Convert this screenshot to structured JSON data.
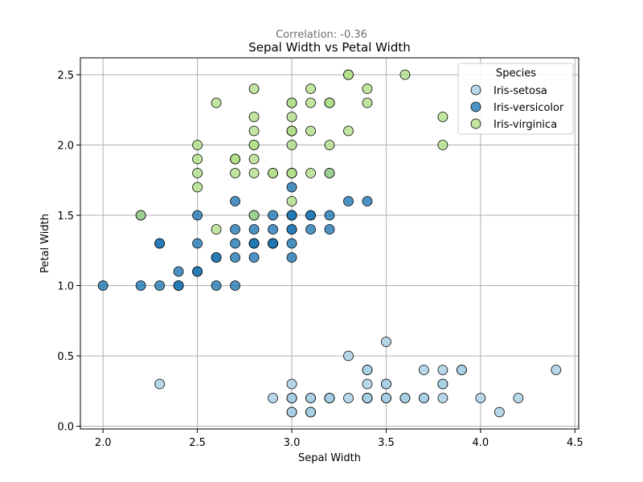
{
  "chart_data": {
    "type": "scatter",
    "subtitle": "Correlation: -0.36",
    "title": "Sepal Width vs Petal Width",
    "xlabel": "Sepal Width",
    "ylabel": "Petal Width",
    "xlim": [
      1.88,
      4.52
    ],
    "ylim": [
      -0.02,
      2.62
    ],
    "xticks": [
      2.0,
      2.5,
      3.0,
      3.5,
      4.0,
      4.5
    ],
    "yticks": [
      0.0,
      0.5,
      1.0,
      1.5,
      2.0,
      2.5
    ],
    "grid": true,
    "legend": {
      "title": "Species",
      "placement": "top-right"
    },
    "series": [
      {
        "name": "Iris-setosa",
        "color": "#a6cee3",
        "points": [
          [
            3.5,
            0.2
          ],
          [
            3.0,
            0.2
          ],
          [
            3.2,
            0.2
          ],
          [
            3.1,
            0.2
          ],
          [
            3.6,
            0.2
          ],
          [
            3.9,
            0.4
          ],
          [
            3.4,
            0.3
          ],
          [
            3.4,
            0.2
          ],
          [
            2.9,
            0.2
          ],
          [
            3.1,
            0.1
          ],
          [
            3.7,
            0.2
          ],
          [
            3.4,
            0.2
          ],
          [
            3.0,
            0.1
          ],
          [
            3.0,
            0.1
          ],
          [
            4.0,
            0.2
          ],
          [
            4.4,
            0.4
          ],
          [
            3.9,
            0.4
          ],
          [
            3.5,
            0.3
          ],
          [
            3.8,
            0.3
          ],
          [
            3.8,
            0.3
          ],
          [
            3.4,
            0.2
          ],
          [
            3.7,
            0.4
          ],
          [
            3.6,
            0.2
          ],
          [
            3.3,
            0.5
          ],
          [
            3.4,
            0.2
          ],
          [
            3.0,
            0.2
          ],
          [
            3.4,
            0.4
          ],
          [
            3.5,
            0.2
          ],
          [
            3.4,
            0.2
          ],
          [
            3.2,
            0.2
          ],
          [
            3.1,
            0.2
          ],
          [
            3.4,
            0.4
          ],
          [
            4.1,
            0.1
          ],
          [
            4.2,
            0.2
          ],
          [
            3.1,
            0.1
          ],
          [
            3.2,
            0.2
          ],
          [
            3.5,
            0.2
          ],
          [
            3.1,
            0.1
          ],
          [
            3.0,
            0.2
          ],
          [
            3.4,
            0.2
          ],
          [
            3.5,
            0.3
          ],
          [
            2.3,
            0.3
          ],
          [
            3.2,
            0.2
          ],
          [
            3.5,
            0.6
          ],
          [
            3.8,
            0.4
          ],
          [
            3.0,
            0.3
          ],
          [
            3.8,
            0.2
          ],
          [
            3.2,
            0.2
          ],
          [
            3.7,
            0.2
          ],
          [
            3.3,
            0.2
          ]
        ]
      },
      {
        "name": "Iris-versicolor",
        "color": "#1f78b4",
        "points": [
          [
            3.2,
            1.4
          ],
          [
            3.2,
            1.5
          ],
          [
            3.1,
            1.5
          ],
          [
            2.3,
            1.3
          ],
          [
            2.8,
            1.5
          ],
          [
            2.8,
            1.3
          ],
          [
            3.3,
            1.6
          ],
          [
            2.4,
            1.0
          ],
          [
            2.9,
            1.3
          ],
          [
            2.7,
            1.4
          ],
          [
            2.0,
            1.0
          ],
          [
            3.0,
            1.5
          ],
          [
            2.2,
            1.0
          ],
          [
            2.9,
            1.4
          ],
          [
            2.9,
            1.3
          ],
          [
            3.1,
            1.4
          ],
          [
            3.0,
            1.5
          ],
          [
            2.7,
            1.0
          ],
          [
            2.2,
            1.5
          ],
          [
            2.5,
            1.1
          ],
          [
            3.2,
            1.8
          ],
          [
            2.8,
            1.3
          ],
          [
            2.5,
            1.5
          ],
          [
            2.8,
            1.2
          ],
          [
            2.9,
            1.3
          ],
          [
            3.0,
            1.4
          ],
          [
            2.8,
            1.4
          ],
          [
            3.0,
            1.7
          ],
          [
            2.9,
            1.5
          ],
          [
            2.6,
            1.0
          ],
          [
            2.4,
            1.1
          ],
          [
            2.4,
            1.0
          ],
          [
            2.7,
            1.2
          ],
          [
            2.7,
            1.6
          ],
          [
            3.0,
            1.5
          ],
          [
            3.4,
            1.6
          ],
          [
            3.1,
            1.5
          ],
          [
            2.3,
            1.3
          ],
          [
            3.0,
            1.3
          ],
          [
            2.5,
            1.3
          ],
          [
            2.6,
            1.2
          ],
          [
            3.0,
            1.4
          ],
          [
            2.6,
            1.2
          ],
          [
            2.3,
            1.0
          ],
          [
            2.7,
            1.3
          ],
          [
            3.0,
            1.2
          ],
          [
            2.9,
            1.3
          ],
          [
            2.9,
            1.3
          ],
          [
            2.5,
            1.1
          ],
          [
            2.8,
            1.3
          ]
        ]
      },
      {
        "name": "Iris-virginica",
        "color": "#b2df8a",
        "points": [
          [
            3.3,
            2.5
          ],
          [
            2.7,
            1.9
          ],
          [
            3.0,
            2.1
          ],
          [
            2.9,
            1.8
          ],
          [
            3.0,
            2.2
          ],
          [
            3.0,
            2.1
          ],
          [
            2.5,
            1.7
          ],
          [
            2.9,
            1.8
          ],
          [
            2.5,
            1.8
          ],
          [
            3.6,
            2.5
          ],
          [
            3.2,
            2.0
          ],
          [
            2.7,
            1.9
          ],
          [
            3.0,
            2.1
          ],
          [
            2.5,
            2.0
          ],
          [
            2.8,
            2.4
          ],
          [
            3.2,
            2.3
          ],
          [
            3.0,
            1.8
          ],
          [
            3.8,
            2.2
          ],
          [
            2.6,
            2.3
          ],
          [
            2.2,
            1.5
          ],
          [
            3.2,
            2.3
          ],
          [
            2.8,
            2.0
          ],
          [
            2.8,
            2.0
          ],
          [
            2.7,
            1.8
          ],
          [
            3.3,
            2.1
          ],
          [
            3.2,
            1.8
          ],
          [
            2.8,
            1.8
          ],
          [
            3.0,
            1.8
          ],
          [
            2.8,
            2.1
          ],
          [
            3.0,
            1.6
          ],
          [
            2.8,
            1.9
          ],
          [
            3.8,
            2.0
          ],
          [
            2.8,
            2.2
          ],
          [
            2.8,
            1.5
          ],
          [
            2.6,
            1.4
          ],
          [
            3.0,
            2.3
          ],
          [
            3.4,
            2.4
          ],
          [
            3.1,
            1.8
          ],
          [
            3.0,
            1.8
          ],
          [
            3.1,
            2.1
          ],
          [
            3.1,
            2.4
          ],
          [
            3.1,
            2.3
          ],
          [
            2.7,
            1.9
          ],
          [
            3.2,
            2.3
          ],
          [
            3.3,
            2.5
          ],
          [
            3.0,
            2.3
          ],
          [
            2.5,
            1.9
          ],
          [
            3.0,
            2.0
          ],
          [
            3.4,
            2.3
          ],
          [
            3.0,
            1.8
          ]
        ]
      }
    ]
  }
}
